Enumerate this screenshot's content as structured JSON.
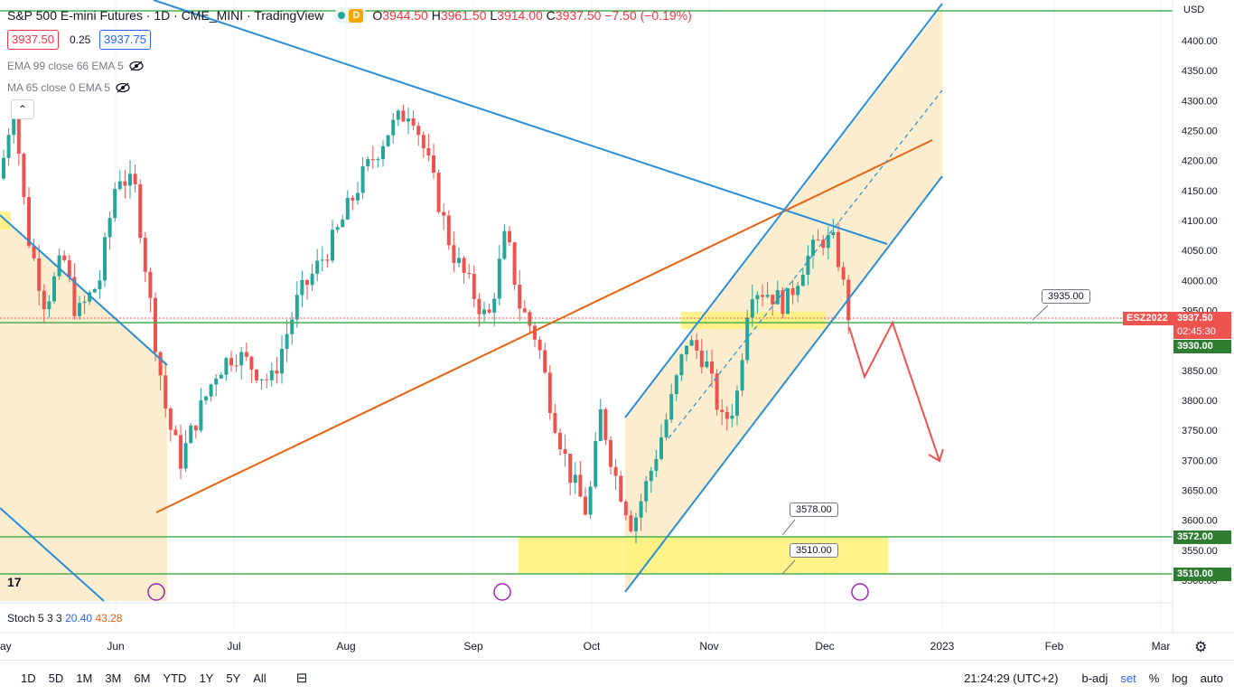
{
  "header": {
    "title": "S&P 500 E-mini Futures · 1D · CME_MINI · TradingView",
    "badge": "D",
    "ohlc": [
      {
        "k": "O",
        "v": "3944.50"
      },
      {
        "k": "H",
        "v": "3961.50"
      },
      {
        "k": "L",
        "v": "3914.00"
      },
      {
        "k": "C",
        "v": "3937.50 −7.50 (−0.19%)"
      }
    ],
    "sell_price": "3937.50",
    "spread": "0.25",
    "buy_price": "3937.75"
  },
  "indicators": {
    "ema": "EMA 99 close 66 EMA 5",
    "ma": "MA 65 close 0 EMA 5",
    "stoch_label": "Stoch 5 3 3",
    "stoch_k": "20.40",
    "stoch_d": "43.28"
  },
  "currency": "USD",
  "yaxis": {
    "ticks": [
      "4400.00",
      "4350.00",
      "4300.00",
      "4250.00",
      "4200.00",
      "4150.00",
      "4100.00",
      "4050.00",
      "4000.00",
      "3950.00",
      "3850.00",
      "3800.00",
      "3750.00",
      "3700.00",
      "3650.00",
      "3600.00",
      "3550.00",
      "3500.00"
    ],
    "tick_values": [
      4400,
      4350,
      4300,
      4250,
      4200,
      4150,
      4100,
      4050,
      4000,
      3950,
      3850,
      3800,
      3750,
      3700,
      3650,
      3600,
      3550,
      3500
    ]
  },
  "xaxis": {
    "ticks": [
      "ay",
      "Jun",
      "Jul",
      "Aug",
      "Sep",
      "Oct",
      "Nov",
      "Dec",
      "2023",
      "Feb",
      "Mar"
    ]
  },
  "price_labels": {
    "symbol": "ESZ2022",
    "last": "3937.50",
    "countdown": "02:45:30",
    "level1": "3930.00",
    "level2": "3572.00",
    "level3": "3510.00"
  },
  "callouts": {
    "c1": "3935.00",
    "c2": "3578.00",
    "c3": "3510.00"
  },
  "colors": {
    "up": "#26a69a",
    "down": "#ef5350",
    "channel": "#2a8ed8",
    "trend": "#e8620f",
    "support": "#4caf50",
    "zone": "#fff176",
    "shade": "#fde9c3"
  },
  "range": [
    "1D",
    "5D",
    "1M",
    "3M",
    "6M",
    "YTD",
    "1Y",
    "5Y",
    "All"
  ],
  "status": {
    "time": "21:24:29 (UTC+2)",
    "badj": "b-adj",
    "set": "set",
    "pct": "%",
    "log": "log",
    "auto": "auto"
  }
}
